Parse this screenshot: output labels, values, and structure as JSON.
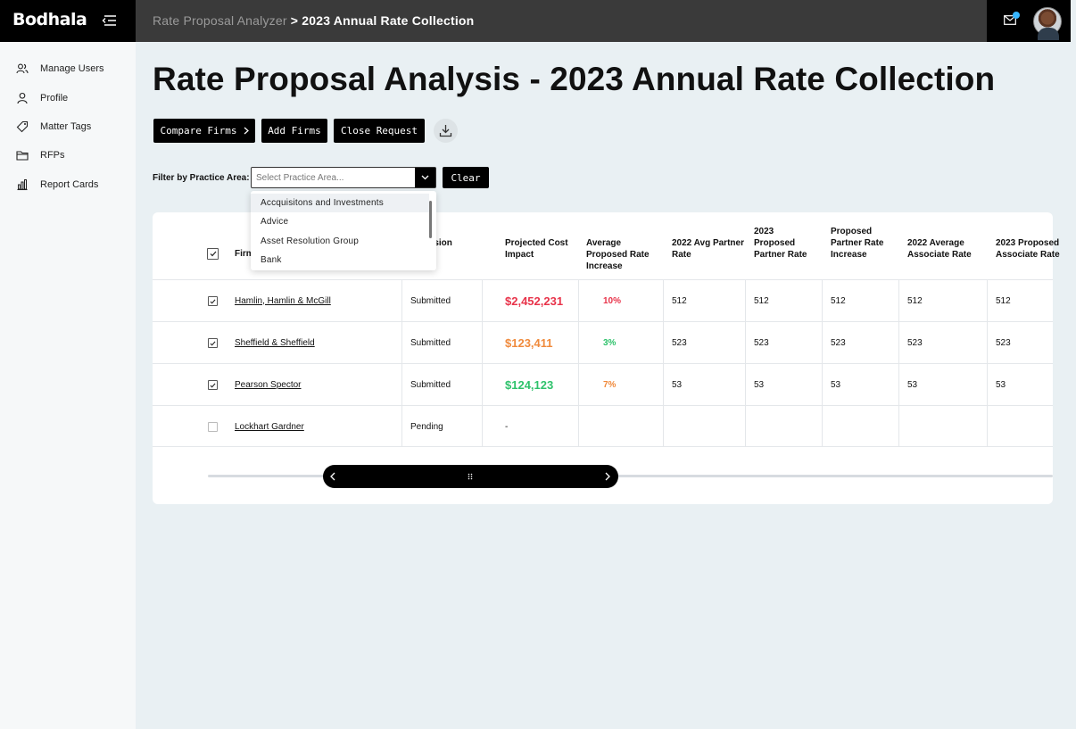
{
  "app": {
    "logo": "Bodhala"
  },
  "breadcrumb": {
    "parent": "Rate Proposal Analyzer",
    "separator": " > ",
    "current": "2023 Annual Rate Collection"
  },
  "sidebar": {
    "items": [
      {
        "label": "Manage Users",
        "icon": "users-icon"
      },
      {
        "label": "Profile",
        "icon": "user-icon"
      },
      {
        "label": "Matter Tags",
        "icon": "tag-icon"
      },
      {
        "label": "RFPs",
        "icon": "folder-icon"
      },
      {
        "label": "Report Cards",
        "icon": "bar-chart-icon"
      }
    ]
  },
  "page": {
    "title": "Rate Proposal Analysis - 2023 Annual Rate Collection"
  },
  "toolbar": {
    "compare_label": "Compare Firms",
    "add_label": "Add Firms",
    "close_label": "Close Request"
  },
  "filter": {
    "label": "Filter by Practice Area:",
    "placeholder": "Select Practice Area...",
    "clear_label": "Clear",
    "options": [
      "Accquisitons and Investments",
      "Advice",
      "Asset Resolution Group",
      "Bank"
    ]
  },
  "colors": {
    "red": "#e8334a",
    "orange": "#f08a3c",
    "green": "#2ec26b",
    "topbar": "#3a3a3a"
  },
  "table": {
    "headers": {
      "firm": "Firm",
      "submission": "ission",
      "cost": "Projected Cost Impact",
      "avg_increase": "Average Proposed Rate Increase",
      "avg_partner_2022": "2022 Avg Partner Rate",
      "proposed_partner_2023": "2023 Proposed Partner Rate",
      "partner_increase": "Proposed Partner Rate Increase",
      "avg_associate_2022": "2022 Average Associate Rate",
      "proposed_associate_2023": "2023 Proposed Associate Rate"
    },
    "rows": [
      {
        "firm": "Hamlin, Hamlin & McGill",
        "status": "Submitted",
        "cost": "$2,452,231",
        "pct": "10%",
        "r1": "512",
        "r2": "512",
        "r3": "512",
        "r4": "512",
        "r5": "512",
        "cost_color": "red",
        "pct_color": "red"
      },
      {
        "firm": "Sheffield & Sheffield",
        "status": "Submitted",
        "cost": "$123,411",
        "pct": "3%",
        "r1": "523",
        "r2": "523",
        "r3": "523",
        "r4": "523",
        "r5": "523",
        "cost_color": "orange",
        "pct_color": "green"
      },
      {
        "firm": "Pearson Spector",
        "status": "Submitted",
        "cost": "$124,123",
        "pct": "7%",
        "r1": "53",
        "r2": "53",
        "r3": "53",
        "r4": "53",
        "r5": "53",
        "cost_color": "green",
        "pct_color": "orange"
      },
      {
        "firm": "Lockhart Gardner",
        "status": "Pending",
        "cost": "-",
        "pct": "",
        "r1": "",
        "r2": "",
        "r3": "",
        "r4": "",
        "r5": "",
        "cost_color": "none",
        "pct_color": "none"
      }
    ]
  }
}
